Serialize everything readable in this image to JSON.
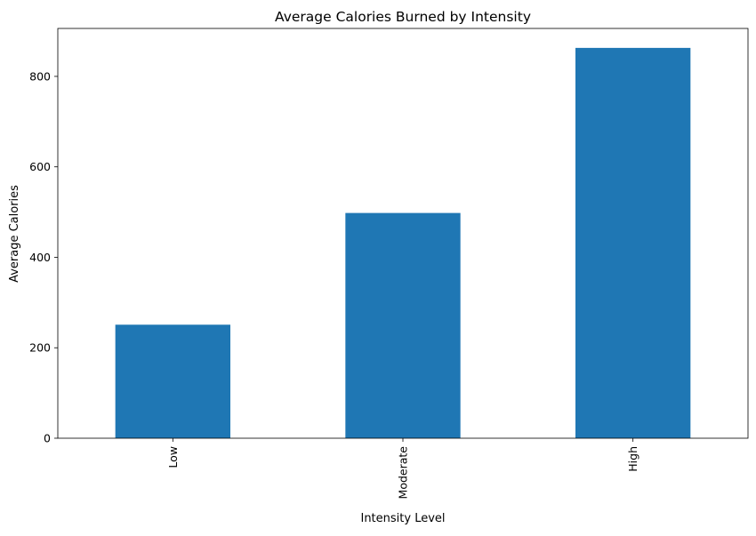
{
  "chart_data": {
    "type": "bar",
    "title": "Average Calories Burned by Intensity",
    "xlabel": "Intensity Level",
    "ylabel": "Average Calories",
    "categories": [
      "Low",
      "Moderate",
      "High"
    ],
    "values": [
      251,
      498,
      863
    ],
    "ylim": [
      0,
      906
    ],
    "yticks": [
      0,
      200,
      400,
      600,
      800
    ],
    "grid": false,
    "legend": "none",
    "bar_color": "#1f77b4"
  }
}
